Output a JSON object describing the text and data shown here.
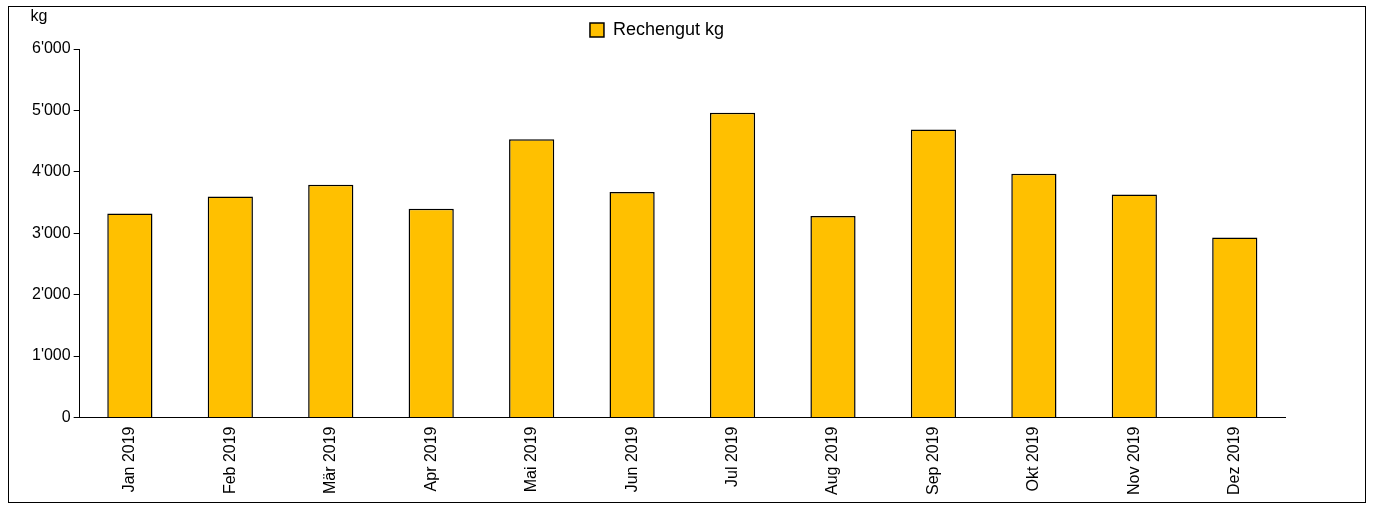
{
  "chart_data": {
    "type": "bar",
    "ylabel": "kg",
    "categories": [
      "Jan 2019",
      "Feb 2019",
      "Mär 2019",
      "Apr 2019",
      "Mai 2019",
      "Jun 2019",
      "Jul 2019",
      "Aug 2019",
      "Sep 2019",
      "Okt 2019",
      "Nov 2019",
      "Dez 2019"
    ],
    "series": [
      {
        "name": "Rechengut kg",
        "color": "#ffc000",
        "values": [
          3320,
          3600,
          3790,
          3400,
          4530,
          3670,
          4960,
          3280,
          4690,
          3970,
          3630,
          2930
        ]
      }
    ],
    "ylim": [
      0,
      6000
    ],
    "yticks": [
      0,
      {
        "value": 1000,
        "label": "1'000"
      },
      {
        "value": 2000,
        "label": "2'000"
      },
      {
        "value": 3000,
        "label": "3'000"
      },
      {
        "value": 4000,
        "label": "4'000"
      },
      {
        "value": 5000,
        "label": "5'000"
      },
      {
        "value": 6000,
        "label": "6'000"
      }
    ],
    "grid": false,
    "legend": "top"
  }
}
